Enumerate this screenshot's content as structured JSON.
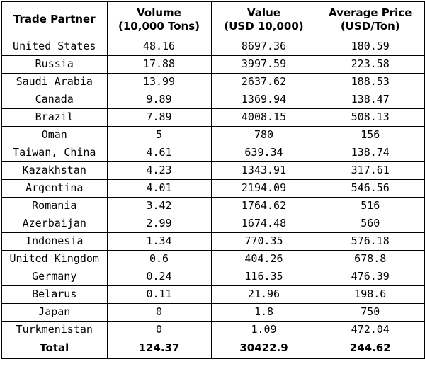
{
  "headers": [
    {
      "line1": "Trade Partner",
      "line2": ""
    },
    {
      "line1": "Volume",
      "line2": "(10,000 Tons)"
    },
    {
      "line1": "Value",
      "line2": "(USD 10,000)"
    },
    {
      "line1": "Average Price",
      "line2": "(USD/Ton)"
    }
  ],
  "rows": [
    [
      "United States",
      "48.16",
      "8697.36",
      "180.59"
    ],
    [
      "Russia",
      "17.88",
      "3997.59",
      "223.58"
    ],
    [
      "Saudi Arabia",
      "13.99",
      "2637.62",
      "188.53"
    ],
    [
      "Canada",
      "9.89",
      "1369.94",
      "138.47"
    ],
    [
      "Brazil",
      "7.89",
      "4008.15",
      "508.13"
    ],
    [
      "Oman",
      "5",
      "780",
      "156"
    ],
    [
      "Taiwan, China",
      "4.61",
      "639.34",
      "138.74"
    ],
    [
      "Kazakhstan",
      "4.23",
      "1343.91",
      "317.61"
    ],
    [
      "Argentina",
      "4.01",
      "2194.09",
      "546.56"
    ],
    [
      "Romania",
      "3.42",
      "1764.62",
      "516"
    ],
    [
      "Azerbaijan",
      "2.99",
      "1674.48",
      "560"
    ],
    [
      "Indonesia",
      "1.34",
      "770.35",
      "576.18"
    ],
    [
      "United Kingdom",
      "0.6",
      "404.26",
      "678.8"
    ],
    [
      "Germany",
      "0.24",
      "116.35",
      "476.39"
    ],
    [
      "Belarus",
      "0.11",
      "21.96",
      "198.6"
    ],
    [
      "Japan",
      "0",
      "1.8",
      "750"
    ],
    [
      "Turkmenistan",
      "0",
      "1.09",
      "472.04"
    ]
  ],
  "total": [
    "Total",
    "124.37",
    "30422.9",
    "244.62"
  ]
}
